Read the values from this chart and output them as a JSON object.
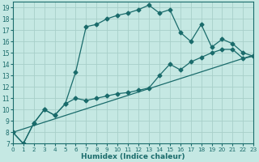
{
  "xlabel": "Humidex (Indice chaleur)",
  "background_color": "#c5e8e3",
  "grid_color": "#a8cfc9",
  "line_color": "#1a6b6b",
  "xlim": [
    0,
    23
  ],
  "ylim": [
    7,
    19.5
  ],
  "xticks": [
    0,
    1,
    2,
    3,
    4,
    5,
    6,
    7,
    8,
    9,
    10,
    11,
    12,
    13,
    14,
    15,
    16,
    17,
    18,
    19,
    20,
    21,
    22,
    23
  ],
  "yticks": [
    7,
    8,
    9,
    10,
    11,
    12,
    13,
    14,
    15,
    16,
    17,
    18,
    19
  ],
  "line1_x": [
    0,
    1,
    2,
    3,
    4,
    5,
    6,
    7,
    8,
    9,
    10,
    11,
    12,
    13,
    14,
    15,
    16,
    17,
    18,
    19,
    20,
    21,
    22,
    23
  ],
  "line1_y": [
    8.0,
    7.0,
    8.8,
    10.0,
    9.5,
    10.5,
    13.3,
    17.3,
    17.5,
    18.0,
    18.3,
    18.5,
    18.8,
    19.2,
    18.5,
    18.8,
    16.8,
    16.0,
    17.5,
    15.5,
    16.2,
    15.8,
    15.0,
    14.7
  ],
  "line2_x": [
    0,
    1,
    2,
    3,
    4,
    5,
    6,
    7,
    8,
    9,
    10,
    11,
    12,
    13,
    14,
    15,
    16,
    17,
    18,
    19,
    20,
    21,
    22,
    23
  ],
  "line2_y": [
    8.0,
    7.0,
    8.8,
    10.0,
    9.5,
    10.5,
    11.0,
    10.8,
    11.0,
    11.2,
    11.4,
    11.5,
    11.7,
    11.9,
    13.0,
    14.0,
    13.5,
    14.2,
    14.6,
    15.0,
    15.3,
    15.3,
    14.5,
    14.7
  ],
  "line3_x": [
    0,
    23
  ],
  "line3_y": [
    8.0,
    14.8
  ]
}
